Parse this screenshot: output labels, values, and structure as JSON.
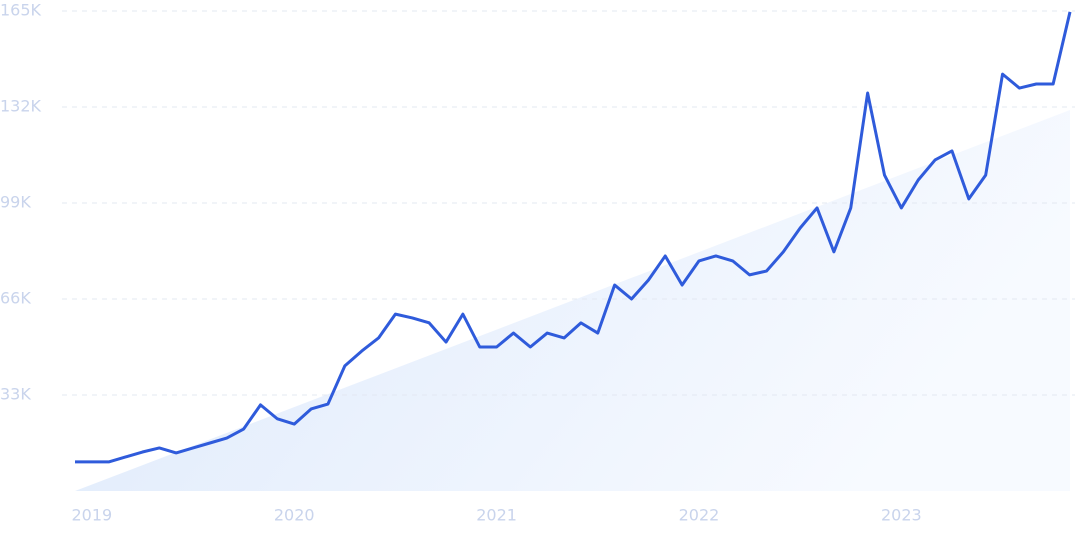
{
  "chart_data": {
    "type": "line",
    "x": [
      0,
      1,
      2,
      3,
      4,
      5,
      6,
      7,
      8,
      9,
      10,
      11,
      12,
      13,
      14,
      15,
      16,
      17,
      18,
      19,
      20,
      21,
      22,
      23,
      24,
      25,
      26,
      27,
      28,
      29,
      30,
      31,
      32,
      33,
      34,
      35,
      36,
      37,
      38,
      39,
      40,
      41,
      42,
      43,
      44,
      45,
      46,
      47,
      48,
      49,
      50,
      51,
      52,
      53,
      54,
      55,
      56,
      57,
      58,
      59
    ],
    "series": [
      {
        "color": "#2f5bdb",
        "values": [
          10000,
          10000,
          10000,
          11700,
          13400,
          14800,
          13100,
          14800,
          16500,
          18200,
          21300,
          29600,
          24800,
          23000,
          28200,
          29900,
          43000,
          48100,
          52600,
          60800,
          59500,
          57800,
          51200,
          60800,
          49500,
          49500,
          54300,
          49500,
          54300,
          52600,
          57800,
          54300,
          70800,
          66000,
          72500,
          80800,
          70800,
          79100,
          80800,
          79100,
          74300,
          75600,
          82200,
          90400,
          97300,
          82200,
          97300,
          136800,
          108600,
          97300,
          106900,
          113800,
          116900,
          100400,
          108600,
          143300,
          138500,
          139900,
          139900,
          164700
        ]
      }
    ],
    "xlim": [
      0,
      59
    ],
    "xticks": [
      {
        "value": 1,
        "label": "2019"
      },
      {
        "value": 13,
        "label": "2020"
      },
      {
        "value": 25,
        "label": "2021"
      },
      {
        "value": 37,
        "label": "2022"
      },
      {
        "value": 49,
        "label": "2023"
      }
    ],
    "ylim": [
      0,
      165000
    ],
    "yticks": [
      {
        "value": 33000,
        "label": "33K"
      },
      {
        "value": 66000,
        "label": "66K"
      },
      {
        "value": 99000,
        "label": "99K"
      },
      {
        "value": 132000,
        "label": "132K"
      },
      {
        "value": 165000,
        "label": "165K"
      }
    ],
    "grid": true
  }
}
